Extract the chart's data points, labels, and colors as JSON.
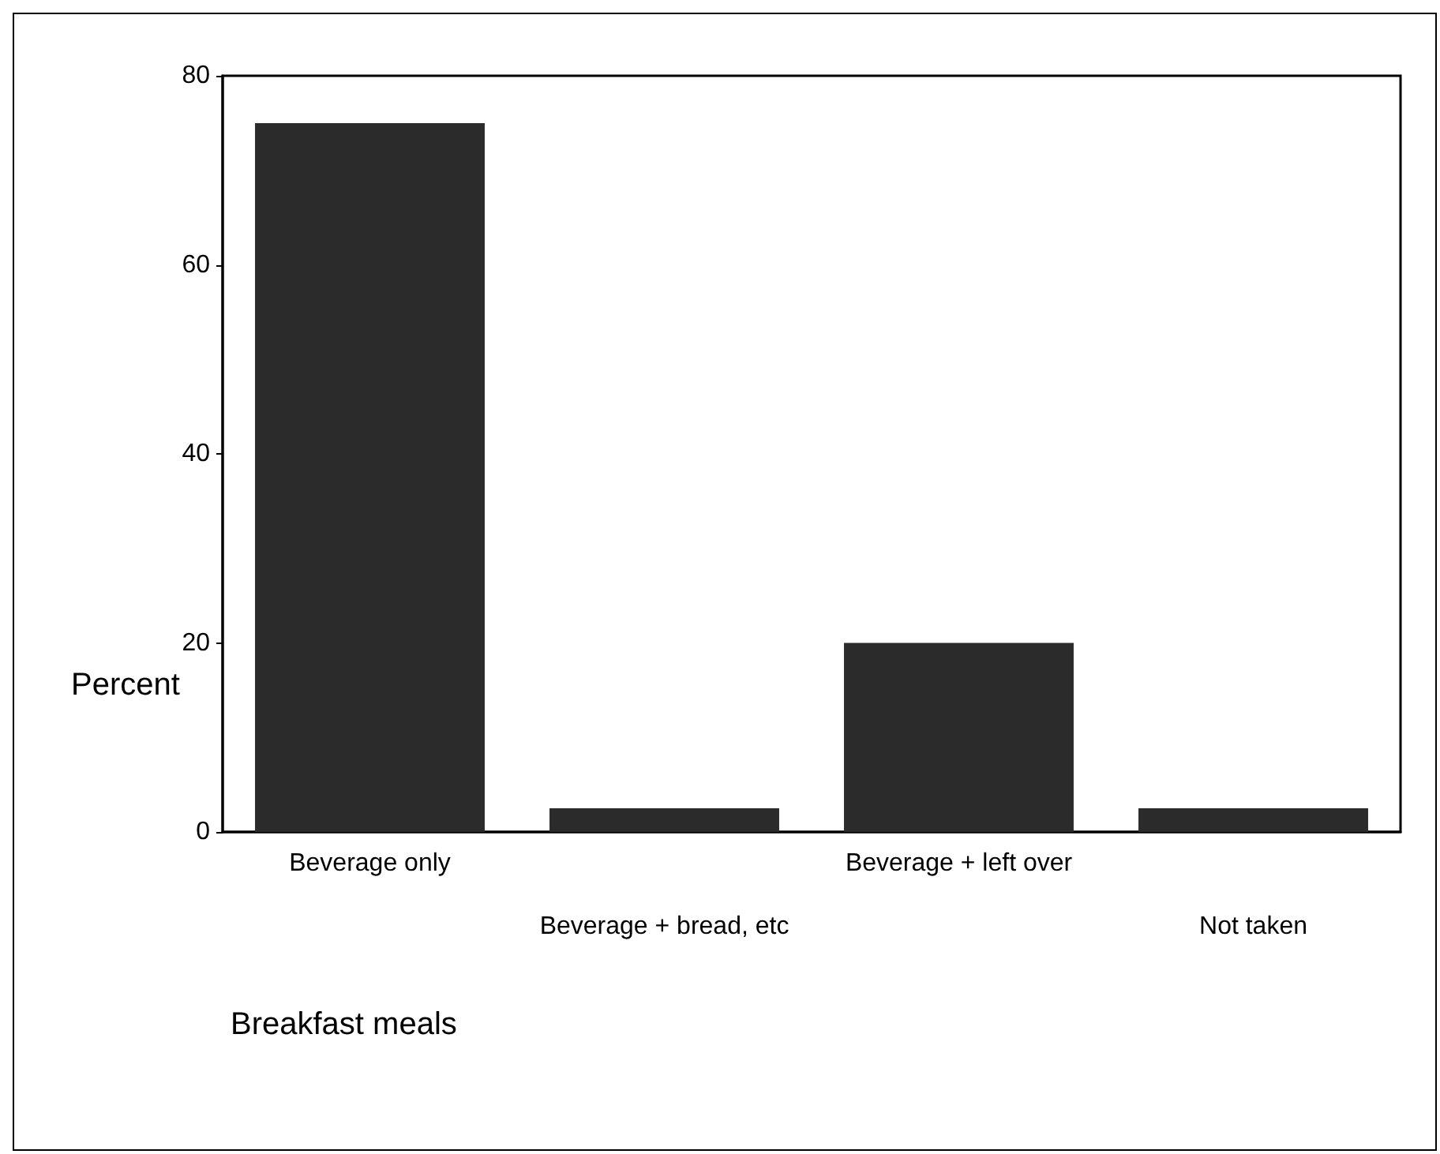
{
  "chart_data": {
    "type": "bar",
    "xlabel": "Breakfast meals",
    "ylabel": "Percent",
    "categories": [
      "Beverage only",
      "Beverage + bread, etc",
      "Beverage + left over",
      "Not taken"
    ],
    "values": [
      75,
      2.5,
      20,
      2.5
    ],
    "color": "#2b2b2b",
    "ylim": [
      0,
      80
    ],
    "yticks": [
      0,
      20,
      40,
      60,
      80
    ],
    "grid": false
  }
}
